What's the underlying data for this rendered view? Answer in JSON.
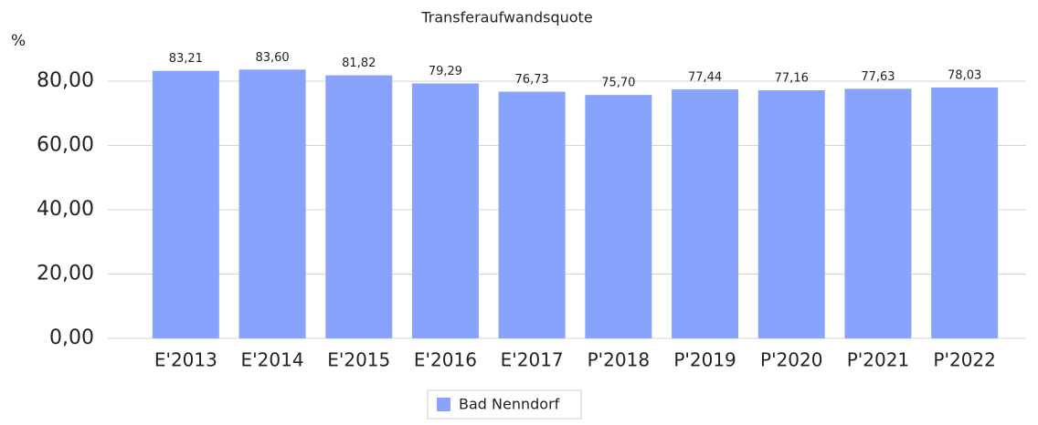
{
  "chart_data": {
    "type": "bar",
    "title": "Transferaufwandsquote",
    "y_label": "%",
    "categories": [
      "E'2013",
      "E'2014",
      "E'2015",
      "E'2016",
      "E'2017",
      "P'2018",
      "P'2019",
      "P'2020",
      "P'2021",
      "P'2022"
    ],
    "series": [
      {
        "name": "Bad Nenndorf",
        "color": "#88a3fb",
        "values": [
          83.21,
          83.6,
          81.82,
          79.29,
          76.73,
          75.7,
          77.44,
          77.16,
          77.63,
          78.03
        ],
        "value_labels": [
          "83,21",
          "83,60",
          "81,82",
          "79,29",
          "76,73",
          "75,70",
          "77,44",
          "77,16",
          "77,63",
          "78,03"
        ]
      }
    ],
    "ylim": [
      0,
      90
    ],
    "yticks": [
      {
        "value": 0,
        "label": "0,00"
      },
      {
        "value": 20,
        "label": "20,00"
      },
      {
        "value": 40,
        "label": "40,00"
      },
      {
        "value": 60,
        "label": "60,00"
      },
      {
        "value": 80,
        "label": "80,00"
      }
    ],
    "grid": true
  }
}
